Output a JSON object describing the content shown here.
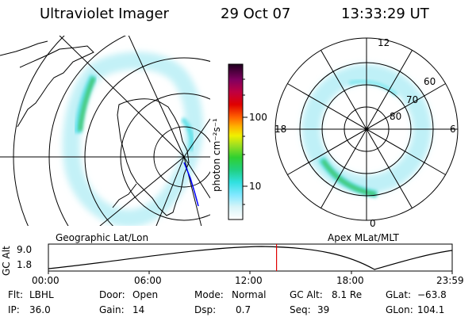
{
  "header": {
    "instrument": "Ultraviolet Imager",
    "date": "29 Oct 07",
    "time": "13:33:29 UT"
  },
  "colorbar": {
    "unit_label": "photon cm⁻²s⁻¹",
    "ticks": [
      "100",
      "10"
    ]
  },
  "left_map": {
    "caption": "Geographic Lat/Lon"
  },
  "right_map": {
    "caption": "Apex MLat/MLT",
    "mlt_labels": {
      "top": "12",
      "left": "18",
      "right": "6",
      "bottom": "0"
    },
    "lat_labels": [
      "60",
      "70",
      "80"
    ]
  },
  "altitude_plot": {
    "ylabel": "GC Alt",
    "y_ticks": [
      "9.0",
      "1.8"
    ],
    "x_ticks": [
      "00:00",
      "06:00",
      "12:00",
      "18:00",
      "23:59"
    ],
    "current_time_fraction": 0.565
  },
  "info": {
    "filter_label": "Flt:",
    "filter_value": "LBHL",
    "door_label": "Door:",
    "door_value": "Open",
    "mode_label": "Mode:",
    "mode_value": "Normal",
    "gcalt_label": "GC Alt:",
    "gcalt_value": "8.1 Re",
    "glat_label": "GLat:",
    "glat_value": "−63.8",
    "ip_label": "IP:",
    "ip_value": "36.0",
    "gain_label": "Gain:",
    "gain_value": "14",
    "dsp_label": "Dsp:",
    "dsp_value": "0.7",
    "seq_label": "Seq:",
    "seq_value": "39",
    "glon_label": "GLon:",
    "glon_value": "104.1"
  },
  "colors": {
    "red_marker": "#e00000",
    "globe_blue": "#0000ff"
  }
}
